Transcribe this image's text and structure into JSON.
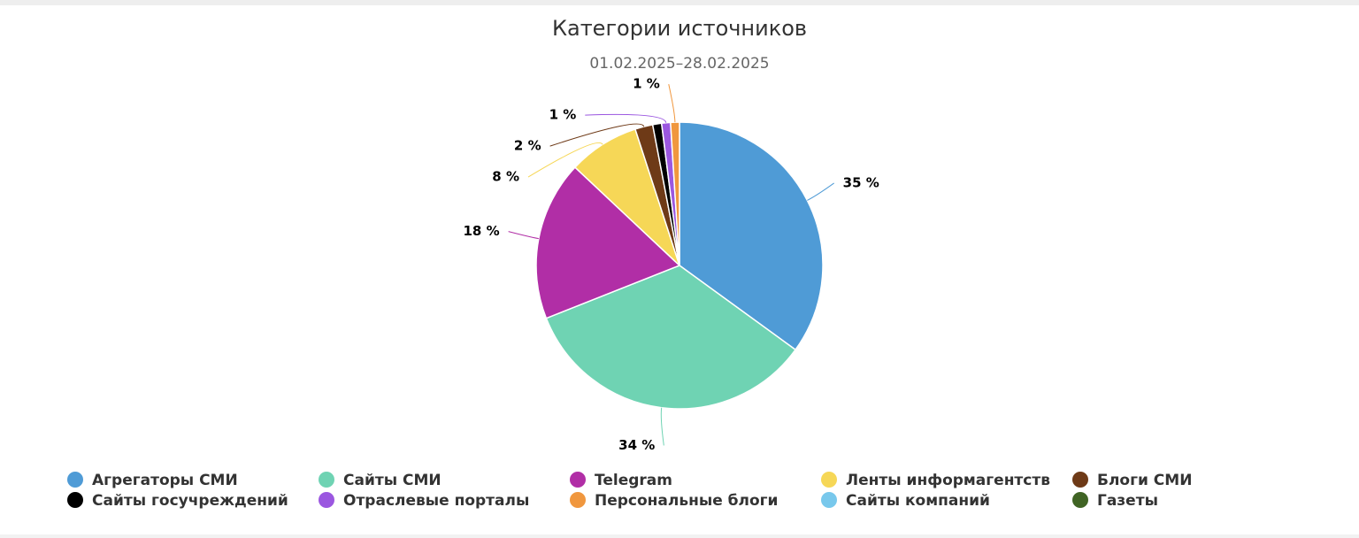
{
  "chart_data": {
    "type": "pie",
    "title": "Категории источников",
    "subtitle": "01.02.2025–28.02.2025",
    "categories": [
      "Агрегаторы СМИ",
      "Сайты СМИ",
      "Telegram",
      "Ленты информагентств",
      "Блоги СМИ",
      "Сайты госучреждений",
      "Отраслевые порталы",
      "Персональные блоги",
      "Сайты компаний",
      "Газеты"
    ],
    "values": [
      35,
      34,
      18,
      8,
      2,
      1,
      1,
      1,
      0,
      0
    ],
    "value_labels": [
      "35 %",
      "34 %",
      "18 %",
      "8 %",
      "2 %",
      null,
      "1 %",
      "1 %",
      null,
      null
    ],
    "colors": [
      "#4f9bd6",
      "#6fd3b3",
      "#b12ea6",
      "#f6d757",
      "#6e3a17",
      "#000000",
      "#9b57e0",
      "#f0973e",
      "#78c8ec",
      "#406424"
    ]
  }
}
